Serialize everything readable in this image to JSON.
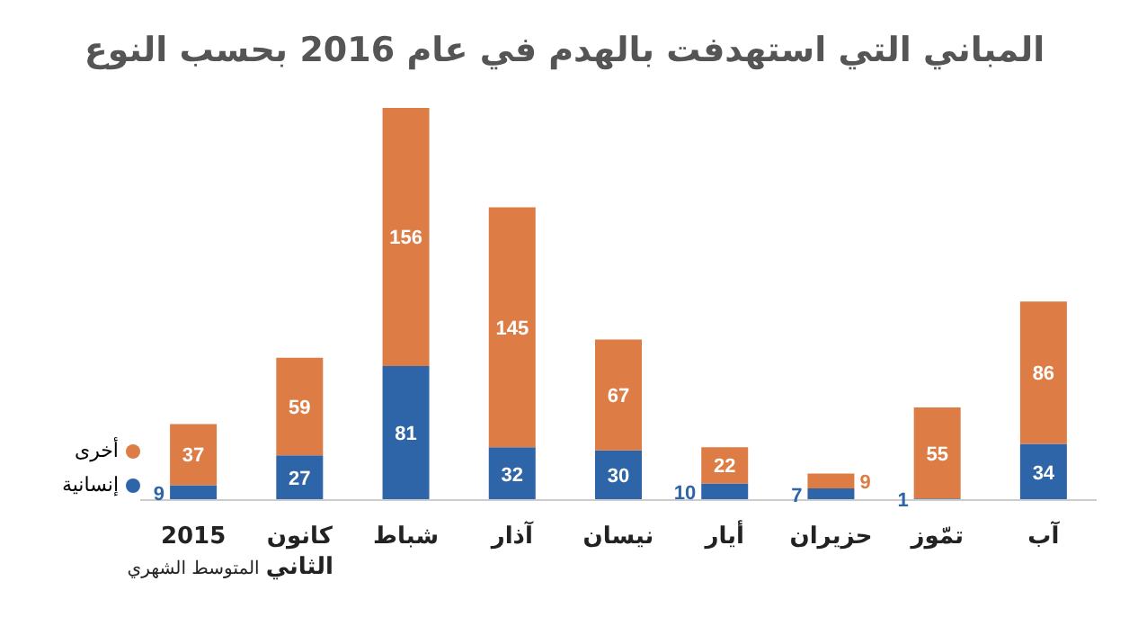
{
  "chart_data": {
    "type": "bar",
    "title": "المباني التي استهدفت بالهدم في عام 2016 بحسب النوع",
    "categories": [
      "2015\nالمتوسط الشهري",
      "كانون الثاني",
      "شباط",
      "آذار",
      "نيسان",
      "أيار",
      "حزيران",
      "تمّوز",
      "آب"
    ],
    "stacked": true,
    "data_labels": true,
    "legend": "left",
    "grid": false,
    "series": [
      {
        "name": "إنسانية",
        "color": "#2e64a8",
        "values": [
          9,
          27,
          81,
          32,
          30,
          10,
          7,
          1,
          34
        ]
      },
      {
        "name": "أخرى",
        "color": "#dd7c45",
        "values": [
          37,
          59,
          156,
          145,
          67,
          22,
          9,
          55,
          86
        ]
      }
    ]
  }
}
